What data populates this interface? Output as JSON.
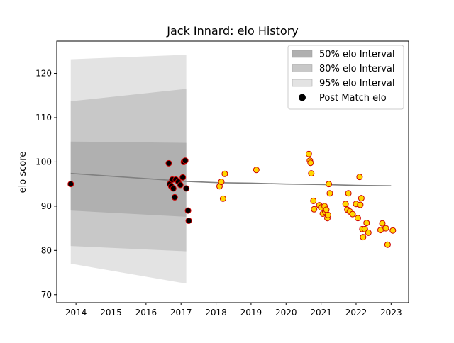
{
  "chart_data": {
    "type": "scatter",
    "title": "Jack Innard: elo History",
    "xlabel": "",
    "ylabel": "elo score",
    "xlim": [
      2013.45,
      2023.5
    ],
    "ylim": [
      68.2,
      127.3
    ],
    "x_ticks": [
      2014,
      2015,
      2016,
      2017,
      2018,
      2019,
      2020,
      2021,
      2022,
      2023
    ],
    "y_ticks": [
      70,
      80,
      90,
      100,
      110,
      120
    ],
    "grid": false,
    "legend_position": "top-right",
    "legend": [
      {
        "label": "50% elo Interval",
        "kind": "band",
        "color": "#b0b0b0"
      },
      {
        "label": "80% elo Interval",
        "kind": "band",
        "color": "#c8c8c8"
      },
      {
        "label": "95% elo Interval",
        "kind": "band",
        "color": "#e3e3e3"
      },
      {
        "label": "Post Match elo",
        "kind": "marker",
        "color": "#000000"
      }
    ],
    "colors": {
      "band_50": "#b0b0b0",
      "band_80": "#c8c8c8",
      "band_95": "#e3e3e3",
      "mean_line": "#808080",
      "marker_early_fill": "#000000",
      "marker_late_fill": "#ffd700",
      "marker_edge": "#cc0000"
    },
    "mean_line": {
      "x": [
        2013.85,
        2017.15,
        2018.1,
        2019.0,
        2020.0,
        2021.0,
        2022.0,
        2023.0
      ],
      "y": [
        97.4,
        95.6,
        95.3,
        95.2,
        95.0,
        94.9,
        94.7,
        94.6
      ]
    },
    "intervals": {
      "x": [
        2013.85,
        2017.15
      ],
      "band_50": {
        "low": [
          89.0,
          87.6
        ],
        "high": [
          104.6,
          104.3
        ]
      },
      "band_80": {
        "low": [
          81.0,
          79.8
        ],
        "high": [
          113.7,
          116.5
        ]
      },
      "band_95": {
        "low": [
          77.0,
          72.5
        ],
        "high": [
          123.2,
          124.2
        ]
      }
    },
    "series": [
      {
        "marker": "early",
        "points": [
          [
            2013.85,
            95.0
          ],
          [
            2016.65,
            99.7
          ],
          [
            2016.68,
            95.0
          ],
          [
            2016.72,
            94.5
          ],
          [
            2016.75,
            96.0
          ],
          [
            2016.78,
            94.0
          ],
          [
            2016.82,
            92.0
          ],
          [
            2016.85,
            96.0
          ],
          [
            2016.92,
            95.5
          ],
          [
            2016.98,
            94.8
          ],
          [
            2017.05,
            96.5
          ],
          [
            2017.08,
            100.0
          ],
          [
            2017.12,
            100.3
          ],
          [
            2017.15,
            94.0
          ],
          [
            2017.2,
            89.0
          ],
          [
            2017.22,
            86.7
          ]
        ]
      },
      {
        "marker": "late",
        "points": [
          [
            2018.1,
            94.5
          ],
          [
            2018.15,
            95.5
          ],
          [
            2018.2,
            91.7
          ],
          [
            2018.25,
            97.3
          ],
          [
            2019.15,
            98.2
          ],
          [
            2020.65,
            101.8
          ],
          [
            2020.68,
            100.3
          ],
          [
            2020.7,
            99.8
          ],
          [
            2020.72,
            97.4
          ],
          [
            2020.78,
            91.2
          ],
          [
            2020.8,
            89.3
          ],
          [
            2020.95,
            90.2
          ],
          [
            2021.0,
            89.7
          ],
          [
            2021.05,
            88.3
          ],
          [
            2021.1,
            90.0
          ],
          [
            2021.12,
            88.7
          ],
          [
            2021.15,
            89.2
          ],
          [
            2021.18,
            87.3
          ],
          [
            2021.2,
            88.0
          ],
          [
            2021.22,
            95.0
          ],
          [
            2021.25,
            92.9
          ],
          [
            2021.7,
            90.5
          ],
          [
            2021.75,
            89.2
          ],
          [
            2021.78,
            92.9
          ],
          [
            2021.82,
            88.8
          ],
          [
            2021.9,
            88.2
          ],
          [
            2022.0,
            90.5
          ],
          [
            2022.05,
            87.3
          ],
          [
            2022.1,
            96.6
          ],
          [
            2022.12,
            90.3
          ],
          [
            2022.15,
            91.8
          ],
          [
            2022.18,
            84.8
          ],
          [
            2022.2,
            83.0
          ],
          [
            2022.25,
            84.8
          ],
          [
            2022.3,
            86.2
          ],
          [
            2022.35,
            84.0
          ],
          [
            2022.7,
            84.6
          ],
          [
            2022.75,
            86.1
          ],
          [
            2022.85,
            85.0
          ],
          [
            2022.9,
            81.3
          ],
          [
            2023.05,
            84.5
          ]
        ]
      }
    ]
  }
}
